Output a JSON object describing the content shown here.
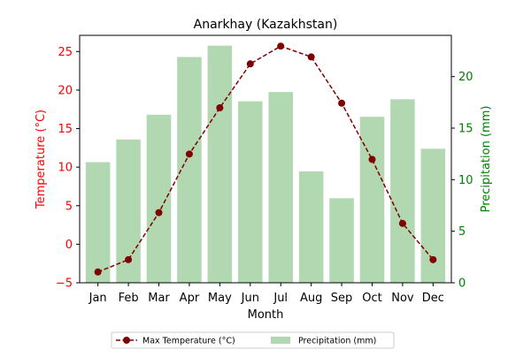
{
  "chart_data": {
    "type": "bar+line",
    "title": "Anarkhay (Kazakhstan)",
    "xlabel": "Month",
    "categories": [
      "Jan",
      "Feb",
      "Mar",
      "Apr",
      "May",
      "Jun",
      "Jul",
      "Aug",
      "Sep",
      "Oct",
      "Nov",
      "Dec"
    ],
    "y_left": {
      "label": "Temperature (°C)",
      "range": [
        -5,
        27.1
      ],
      "ticks": [
        -5,
        0,
        5,
        10,
        15,
        20,
        25
      ],
      "color": "#ff0000"
    },
    "y_right": {
      "label": "Precipitation (mm)",
      "range": [
        0,
        24
      ],
      "ticks": [
        0,
        5,
        10,
        15,
        20
      ],
      "color": "#008000"
    },
    "series": [
      {
        "name": "Max Temperature (°C)",
        "kind": "line",
        "axis": "left",
        "color": "#800000",
        "values": [
          -3.6,
          -2.0,
          4.1,
          11.7,
          17.7,
          23.4,
          25.7,
          24.3,
          18.3,
          11.0,
          2.7,
          -2.0
        ]
      },
      {
        "name": "Precipitation (mm)",
        "kind": "bar",
        "axis": "right",
        "color": "#b2d8b2",
        "values": [
          11.7,
          13.9,
          16.3,
          21.9,
          23.0,
          17.6,
          18.5,
          10.8,
          8.2,
          16.1,
          17.8,
          13.0
        ]
      }
    ],
    "legend": {
      "placement": "bottom-center",
      "entries": [
        "Max Temperature (°C)",
        "Precipitation (mm)"
      ]
    },
    "grid": false
  }
}
